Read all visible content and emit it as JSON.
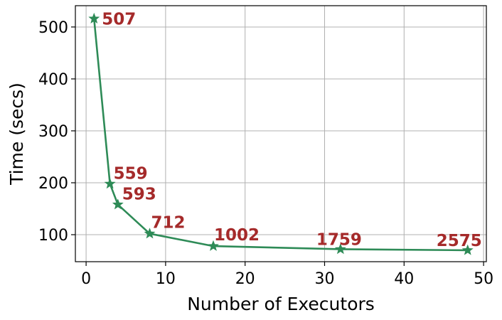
{
  "chart_data": {
    "type": "line",
    "title": "",
    "xlabel": "Number of Executors",
    "ylabel": "Time (secs)",
    "xlim": [
      -1.35,
      50.35
    ],
    "ylim": [
      48,
      541
    ],
    "xticks": [
      0,
      10,
      20,
      30,
      40,
      50
    ],
    "yticks": [
      100,
      200,
      300,
      400,
      500
    ],
    "grid": true,
    "marker": "star",
    "colors": {
      "line": "#2e8b57",
      "labels": "#a52a2a"
    },
    "series": [
      {
        "x": [
          1,
          3,
          4,
          8,
          16,
          32,
          48
        ],
        "y": [
          516,
          198,
          158,
          102,
          78,
          72,
          70
        ],
        "point_labels": [
          "507",
          "559",
          "593",
          "712",
          "1002",
          "1759",
          "2575"
        ]
      }
    ]
  }
}
